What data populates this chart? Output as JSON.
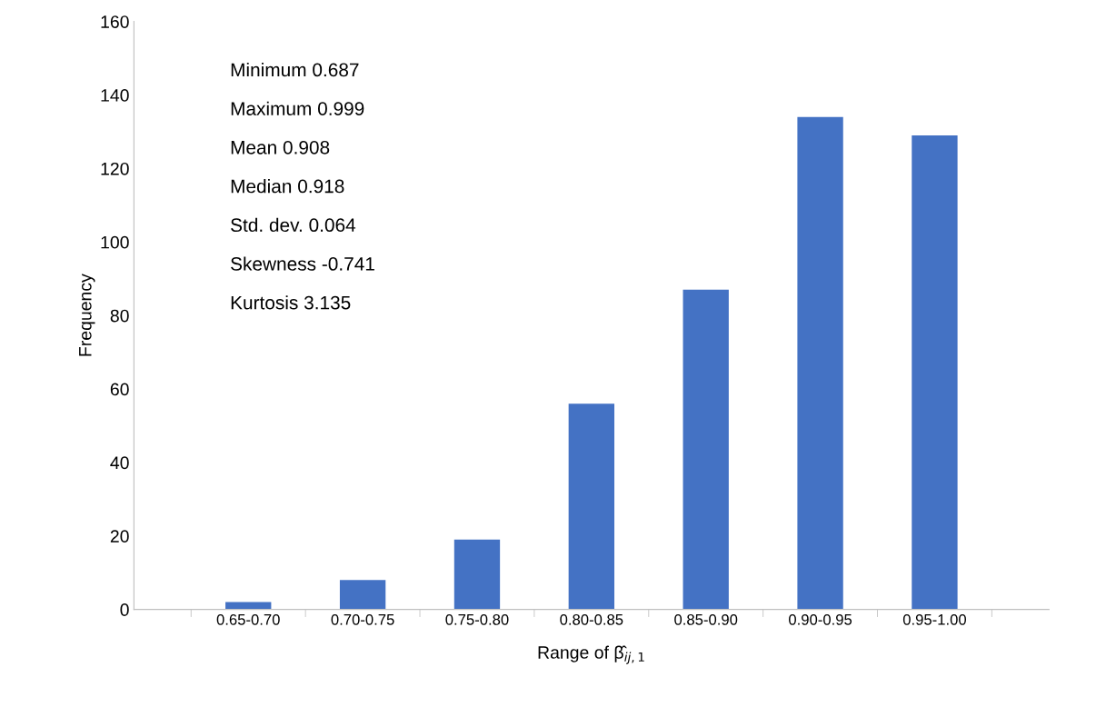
{
  "chart_data": {
    "type": "bar",
    "xlabel": "Range of β̂$_{ij,1}$",
    "ylabel": "Frequency",
    "categories": [
      "0.65-0.70",
      "0.70-0.75",
      "0.75-0.80",
      "0.80-0.85",
      "0.85-0.90",
      "0.90-0.95",
      "0.95-1.00"
    ],
    "values": [
      2,
      8,
      19,
      56,
      87,
      134,
      129
    ],
    "color": "#4472c4",
    "ylim": [
      0,
      160
    ],
    "yticks": [
      0,
      20,
      40,
      60,
      80,
      100,
      120,
      140,
      160
    ],
    "grid": false,
    "legend": false,
    "annotations": [
      "Minimum 0.687",
      "Maximum 0.999",
      "Mean 0.908",
      "Median 0.918",
      "Std. dev. 0.064",
      "Skewness -0.741",
      "Kurtosis 3.135"
    ]
  }
}
